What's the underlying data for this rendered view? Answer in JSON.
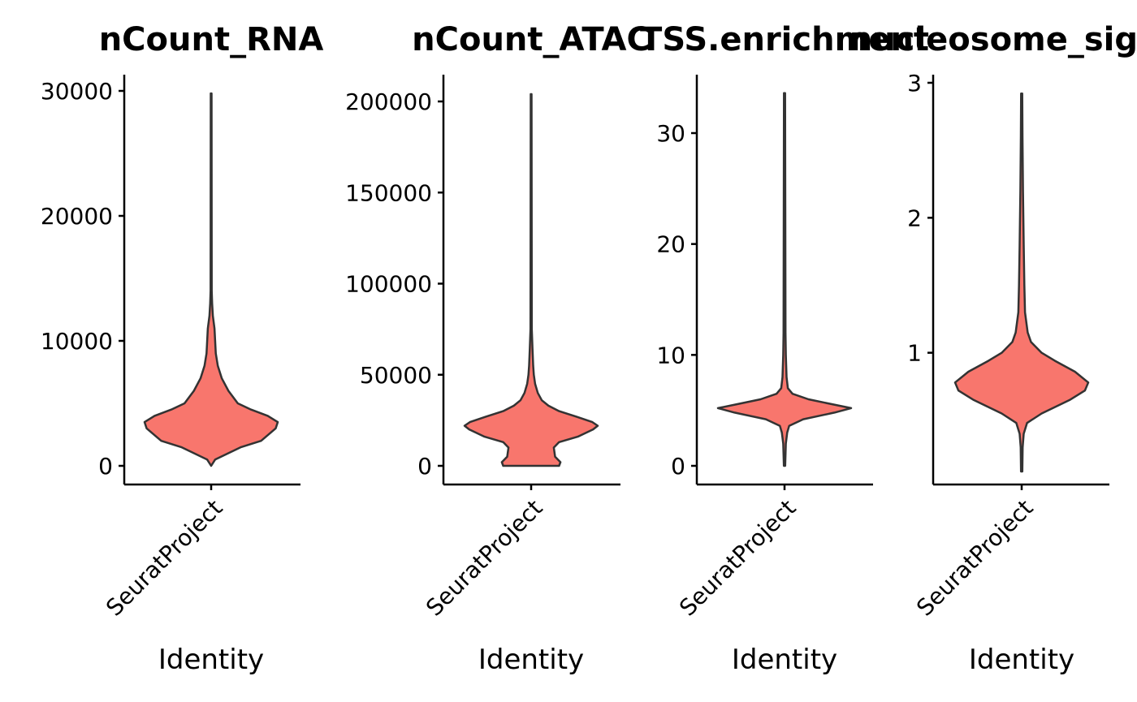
{
  "chart_data": [
    {
      "type": "violin",
      "title": "nCount_RNA",
      "xlabel": "Identity",
      "ylabel": "",
      "categories": [
        "SeuratProject"
      ],
      "ylim": [
        0,
        30000
      ],
      "yticks": [
        0,
        10000,
        20000,
        30000
      ],
      "ytick_labels": [
        "0",
        "10000",
        "20000",
        "30000"
      ],
      "fill": "#F8766D",
      "grid": false,
      "legend": "none",
      "violin": {
        "min": 0,
        "max": 29800,
        "profile": [
          [
            0,
            0
          ],
          [
            500,
            0.06
          ],
          [
            1500,
            0.45
          ],
          [
            2000,
            0.75
          ],
          [
            3000,
            0.97
          ],
          [
            3500,
            1.0
          ],
          [
            4000,
            0.85
          ],
          [
            4500,
            0.6
          ],
          [
            5000,
            0.4
          ],
          [
            6000,
            0.26
          ],
          [
            7000,
            0.16
          ],
          [
            8000,
            0.1
          ],
          [
            9000,
            0.07
          ],
          [
            10000,
            0.06
          ],
          [
            11000,
            0.05
          ],
          [
            12000,
            0.025
          ],
          [
            13000,
            0.015
          ],
          [
            14000,
            0.008
          ],
          [
            29800,
            0.006
          ]
        ]
      }
    },
    {
      "type": "violin",
      "title": "nCount_ATAC",
      "xlabel": "Identity",
      "ylabel": "",
      "categories": [
        "SeuratProject"
      ],
      "ylim": [
        0,
        200000
      ],
      "yticks": [
        0,
        50000,
        100000,
        150000,
        200000
      ],
      "ytick_labels": [
        "0",
        "50000",
        "100000",
        "150000",
        "200000"
      ],
      "fill": "#F8766D",
      "grid": false,
      "legend": "none",
      "violin": {
        "min": 0,
        "max": 204000,
        "profile": [
          [
            0,
            0.42
          ],
          [
            2000,
            0.44
          ],
          [
            5000,
            0.36
          ],
          [
            10000,
            0.34
          ],
          [
            13000,
            0.42
          ],
          [
            16000,
            0.7
          ],
          [
            20000,
            0.93
          ],
          [
            22000,
            1.0
          ],
          [
            24000,
            0.92
          ],
          [
            27000,
            0.68
          ],
          [
            30000,
            0.42
          ],
          [
            33000,
            0.26
          ],
          [
            36000,
            0.16
          ],
          [
            40000,
            0.1
          ],
          [
            45000,
            0.06
          ],
          [
            50000,
            0.04
          ],
          [
            55000,
            0.03
          ],
          [
            65000,
            0.02
          ],
          [
            75000,
            0.01
          ],
          [
            204000,
            0.006
          ]
        ]
      }
    },
    {
      "type": "violin",
      "title": "TSS.enrichment",
      "xlabel": "Identity",
      "ylabel": "",
      "categories": [
        "SeuratProject"
      ],
      "ylim": [
        0,
        30
      ],
      "yticks": [
        0,
        10,
        20,
        30
      ],
      "ytick_labels": [
        "0",
        "10",
        "20",
        "30"
      ],
      "fill": "#F8766D",
      "grid": false,
      "legend": "none",
      "violin": {
        "min": 0,
        "max": 33.6,
        "profile": [
          [
            0,
            0.01
          ],
          [
            2,
            0.02
          ],
          [
            3,
            0.04
          ],
          [
            3.6,
            0.07
          ],
          [
            4.2,
            0.28
          ],
          [
            4.8,
            0.75
          ],
          [
            5.2,
            1.0
          ],
          [
            5.6,
            0.68
          ],
          [
            6,
            0.36
          ],
          [
            6.5,
            0.12
          ],
          [
            7,
            0.05
          ],
          [
            8,
            0.03
          ],
          [
            10,
            0.02
          ],
          [
            12,
            0.015
          ],
          [
            33.6,
            0.008
          ]
        ]
      }
    },
    {
      "type": "violin",
      "title": "nucleosome_signal",
      "xlabel": "Identity",
      "ylabel": "",
      "categories": [
        "SeuratProject"
      ],
      "ylim": [
        0,
        3
      ],
      "yticks": [
        1,
        2,
        3
      ],
      "ytick_labels": [
        "1",
        "2",
        "3"
      ],
      "fill": "#F8766D",
      "grid": false,
      "legend": "none",
      "violin": {
        "min": 0.12,
        "max": 2.92,
        "profile": [
          [
            0.12,
            0.01
          ],
          [
            0.3,
            0.015
          ],
          [
            0.4,
            0.03
          ],
          [
            0.48,
            0.08
          ],
          [
            0.55,
            0.3
          ],
          [
            0.65,
            0.72
          ],
          [
            0.72,
            0.95
          ],
          [
            0.78,
            1.0
          ],
          [
            0.86,
            0.8
          ],
          [
            0.94,
            0.5
          ],
          [
            1.0,
            0.3
          ],
          [
            1.08,
            0.14
          ],
          [
            1.15,
            0.09
          ],
          [
            1.3,
            0.05
          ],
          [
            1.5,
            0.04
          ],
          [
            1.8,
            0.03
          ],
          [
            2.2,
            0.02
          ],
          [
            2.6,
            0.012
          ],
          [
            2.92,
            0.008
          ]
        ]
      }
    }
  ]
}
